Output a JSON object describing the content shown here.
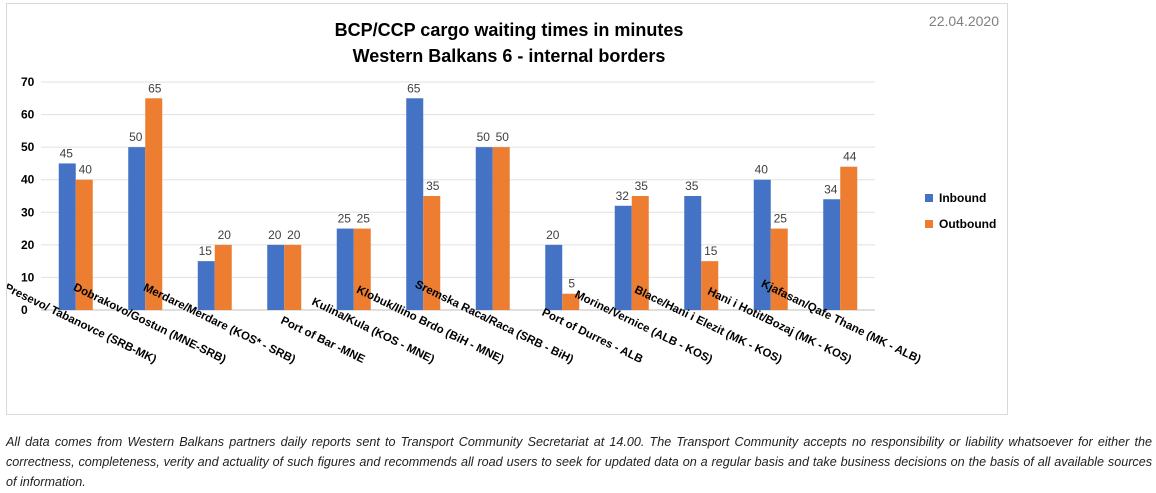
{
  "date": "22.04.2020",
  "chart_data": {
    "type": "bar",
    "title": [
      "BCP/CCP cargo waiting times in minutes",
      "Western Balkans 6 - internal borders"
    ],
    "categories": [
      "Presevo/ Tabanovce (SRB-MK)",
      "Dobrakovo/Gostun (MNE-SRB)",
      "Merdare/Merdare (KOS* - SRB)",
      "Port of Bar -MNE",
      "Kulina/Kula (KOS - MNE)",
      "Klobuk/Ilino Brdo (BiH - MNE)",
      "Sremska Raca/Raca (SRB - BiH)",
      "Port of Durres - ALB",
      "Morine/Vernice (ALB - KOS)",
      "Blace/Hani i Elezit (MK - KOS)",
      "Hani i Hotit/Bozaj (MK - KOS)",
      "Kjafasan/Qafe Thane (MK - ALB)"
    ],
    "series": [
      {
        "name": "Inbound",
        "color": "#4472c4",
        "values": [
          45,
          50,
          15,
          20,
          25,
          65,
          50,
          20,
          32,
          35,
          40,
          34
        ]
      },
      {
        "name": "Outbound",
        "color": "#ed7d31",
        "values": [
          40,
          65,
          20,
          20,
          25,
          35,
          50,
          5,
          35,
          15,
          25,
          44
        ]
      }
    ],
    "ylim": [
      0,
      70
    ],
    "yticks": [
      0,
      10,
      20,
      30,
      40,
      50,
      60,
      70
    ],
    "grid": true,
    "legend_position": "right",
    "data_labels": true
  },
  "footnote": "All data comes from Western Balkans partners daily reports sent to Transport Community Secretariat at 14.00. The Transport Community accepts no responsibility or liability whatsoever for either the correctness, completeness, verity and actuality of such figures and recommends all road users to seek for updated data on a regular basis and take business decisions on the basis of all available sources of information."
}
